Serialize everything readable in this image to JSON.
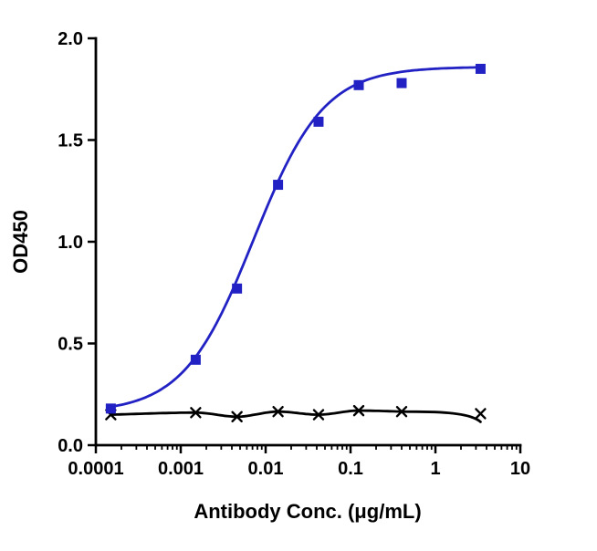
{
  "chart_data": {
    "type": "line",
    "xlabel": "Antibody Conc. (μg/mL)",
    "ylabel": "OD450",
    "legend": "none",
    "grid": "off",
    "x_axis": {
      "scale": "log",
      "min": 0.0001,
      "max": 10,
      "ticks": [
        {
          "value": 0.0001,
          "label": "0.0001"
        },
        {
          "value": 0.001,
          "label": "0.001"
        },
        {
          "value": 0.01,
          "label": "0.01"
        },
        {
          "value": 0.1,
          "label": "0.1"
        },
        {
          "value": 1,
          "label": "1"
        },
        {
          "value": 10,
          "label": "10"
        }
      ]
    },
    "y_axis": {
      "min": 0,
      "max": 2,
      "ticks": [
        {
          "value": 0,
          "label": "0.0"
        },
        {
          "value": 0.5,
          "label": "0.5"
        },
        {
          "value": 1,
          "label": "1.0"
        },
        {
          "value": 1.5,
          "label": "1.5"
        },
        {
          "value": 2,
          "label": "2.0"
        }
      ]
    },
    "series": [
      {
        "marker": "square",
        "color": "#2222c4",
        "x": [
          0.00015,
          0.0015,
          0.0046,
          0.014,
          0.042,
          0.125,
          0.4,
          3.4
        ],
        "y": [
          0.18,
          0.42,
          0.77,
          1.28,
          1.59,
          1.77,
          1.78,
          1.85
        ],
        "fit": {
          "type": "4pl",
          "bottom": 0.16,
          "top": 1.86,
          "ec50": 0.0072,
          "hill": 1.05
        }
      },
      {
        "marker": "cross",
        "color": "#000000",
        "x": [
          0.00015,
          0.0015,
          0.0046,
          0.014,
          0.042,
          0.125,
          0.4,
          3.4
        ],
        "y": [
          0.15,
          0.16,
          0.14,
          0.165,
          0.15,
          0.17,
          0.165,
          0.155
        ],
        "fit": {
          "type": "spline"
        },
        "curve_end": {
          "x": 3.4,
          "y": 0.115
        }
      }
    ]
  }
}
